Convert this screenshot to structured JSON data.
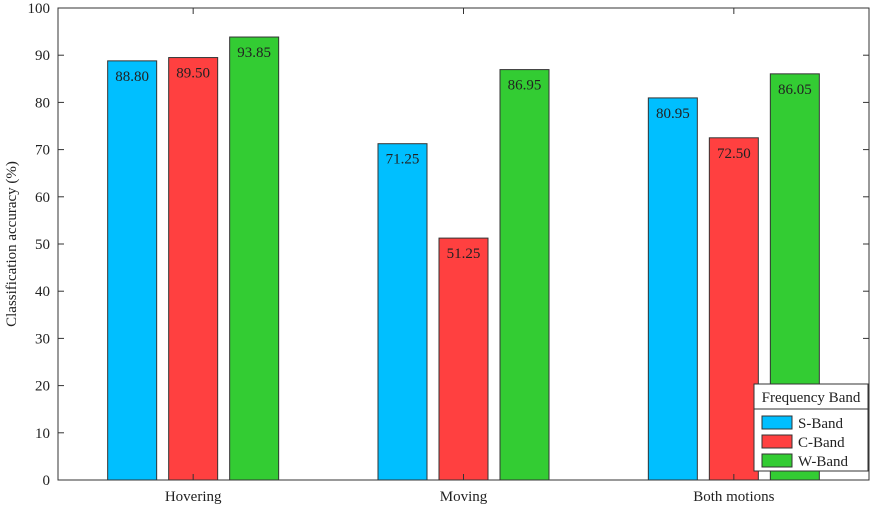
{
  "chart_data": {
    "type": "bar",
    "categories": [
      "Hovering",
      "Moving",
      "Both motions"
    ],
    "series": [
      {
        "name": "S-Band",
        "color": "#00bfff",
        "values": [
          88.8,
          71.25,
          80.95
        ]
      },
      {
        "name": "C-Band",
        "color": "#ff4040",
        "values": [
          89.5,
          51.25,
          72.5
        ]
      },
      {
        "name": "W-Band",
        "color": "#33cc33",
        "values": [
          93.85,
          86.95,
          86.05
        ]
      }
    ],
    "value_labels": [
      [
        "88.80",
        "71.25",
        "80.95"
      ],
      [
        "89.50",
        "51.25",
        "72.50"
      ],
      [
        "93.85",
        "86.95",
        "86.05"
      ]
    ],
    "ylabel": "Classification accuracy (%)",
    "xlabel": "",
    "ylim": [
      0,
      100
    ],
    "yticks": [
      0,
      10,
      20,
      30,
      40,
      50,
      60,
      70,
      80,
      90,
      100
    ],
    "legend": {
      "title": "Frequency Band",
      "placement": "bottom-right"
    },
    "grid": false
  }
}
